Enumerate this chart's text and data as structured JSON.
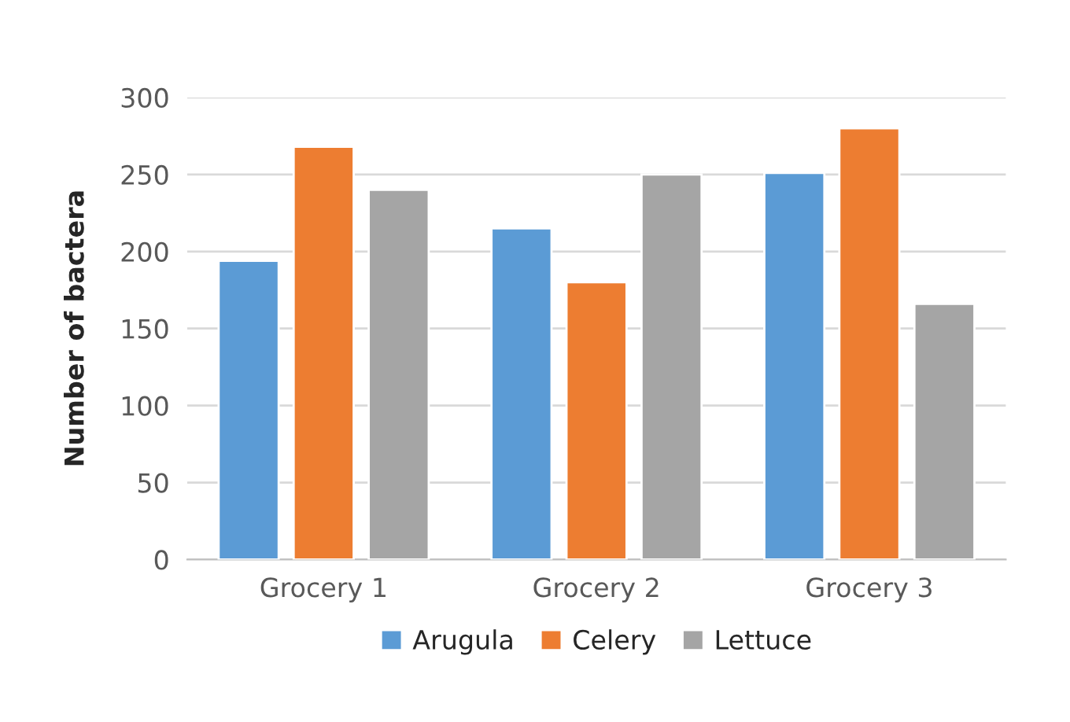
{
  "chart_data": {
    "type": "bar",
    "ylabel": "Number of bactera",
    "categories": [
      "Grocery 1",
      "Grocery 2",
      "Grocery 3"
    ],
    "series": [
      {
        "name": "Arugula",
        "color": "#5b9bd5",
        "values": [
          194,
          215,
          251
        ]
      },
      {
        "name": "Celery",
        "color": "#ed7d31",
        "values": [
          268,
          180,
          280
        ]
      },
      {
        "name": "Lettuce",
        "color": "#a5a5a5",
        "values": [
          240,
          250,
          166
        ]
      }
    ],
    "ylim": [
      0,
      300
    ],
    "yticks": [
      0,
      50,
      100,
      150,
      200,
      250,
      300
    ],
    "grid": "y",
    "legend": "bottom"
  }
}
